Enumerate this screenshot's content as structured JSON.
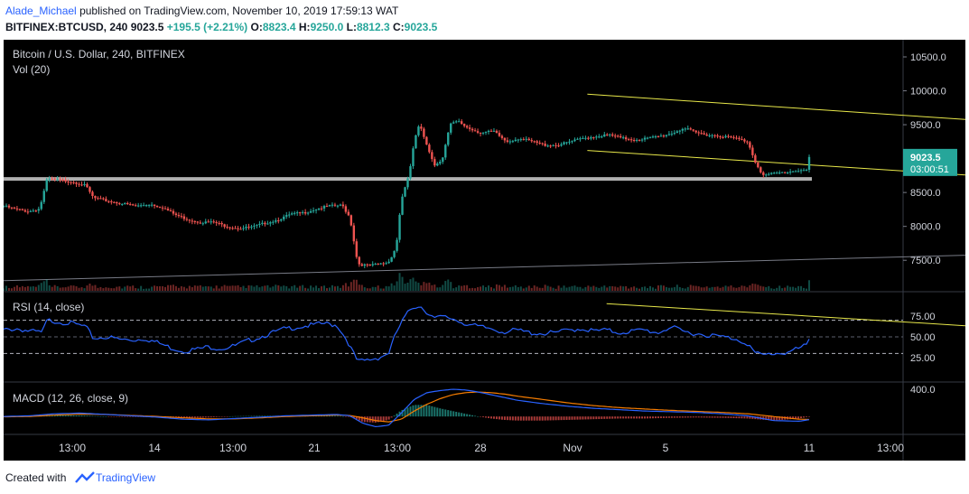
{
  "header": {
    "author": "Alade_Michael",
    "published_text": "published on TradingView.com, November 10, 2019 17:59:13 WAT",
    "symbol_line": "BITFINEX:BTCUSD, 240",
    "last": "9023.5",
    "change": "+195.5 (+2.21%)",
    "open_label": "O:",
    "open": "8823.4",
    "high_label": "H:",
    "high": "9250.0",
    "low_label": "L:",
    "low": "8812.3",
    "close_label": "C:",
    "close": "9023.5"
  },
  "footer": {
    "created_with": "Created with",
    "brand": "TradingView"
  },
  "colors": {
    "up": "#26a69a",
    "down": "#ef5350",
    "background": "#000000",
    "trendline": "#e8e84a",
    "rsi": "#2962ff",
    "macd": "#2962ff",
    "signal": "#f57c00",
    "support": "#b0b0b0"
  },
  "chart_data": {
    "type": "candlestick",
    "title": "Bitcoin / U.S. Dollar, 240, BITFINEX",
    "volume_label": "Vol (20)",
    "price_axis": {
      "ticks": [
        "10500.0",
        "10000.0",
        "9500.0",
        "9000.0",
        "8500.0",
        "8000.0",
        "7500.0"
      ],
      "range": [
        7050,
        10700
      ],
      "last_price": "9023.5",
      "countdown": "03:00:51"
    },
    "time_axis": {
      "labels": [
        "13:00",
        "14",
        "13:00",
        "21",
        "13:00",
        "28",
        "Nov",
        "5",
        "11",
        "13:00"
      ]
    },
    "close_path": [
      [
        0,
        8300
      ],
      [
        10,
        8250
      ],
      [
        20,
        8220
      ],
      [
        28,
        8260
      ],
      [
        34,
        8700
      ],
      [
        44,
        8680
      ],
      [
        54,
        8660
      ],
      [
        64,
        8600
      ],
      [
        70,
        8420
      ],
      [
        80,
        8380
      ],
      [
        94,
        8330
      ],
      [
        104,
        8300
      ],
      [
        114,
        8330
      ],
      [
        124,
        8280
      ],
      [
        134,
        8170
      ],
      [
        144,
        8100
      ],
      [
        154,
        8060
      ],
      [
        164,
        8060
      ],
      [
        174,
        8000
      ],
      [
        184,
        7970
      ],
      [
        194,
        7990
      ],
      [
        204,
        8050
      ],
      [
        214,
        8100
      ],
      [
        224,
        8180
      ],
      [
        234,
        8200
      ],
      [
        244,
        8260
      ],
      [
        254,
        8300
      ],
      [
        264,
        8310
      ],
      [
        270,
        8130
      ],
      [
        276,
        7450
      ],
      [
        284,
        7420
      ],
      [
        292,
        7440
      ],
      [
        300,
        7470
      ],
      [
        306,
        7700
      ],
      [
        310,
        8400
      ],
      [
        316,
        8750
      ],
      [
        320,
        9250
      ],
      [
        324,
        9500
      ],
      [
        330,
        9200
      ],
      [
        336,
        8900
      ],
      [
        342,
        9000
      ],
      [
        348,
        9500
      ],
      [
        354,
        9550
      ],
      [
        362,
        9450
      ],
      [
        372,
        9380
      ],
      [
        382,
        9400
      ],
      [
        392,
        9250
      ],
      [
        402,
        9300
      ],
      [
        412,
        9250
      ],
      [
        422,
        9200
      ],
      [
        432,
        9200
      ],
      [
        442,
        9250
      ],
      [
        452,
        9300
      ],
      [
        462,
        9330
      ],
      [
        472,
        9350
      ],
      [
        482,
        9300
      ],
      [
        492,
        9280
      ],
      [
        502,
        9300
      ],
      [
        512,
        9330
      ],
      [
        522,
        9380
      ],
      [
        530,
        9450
      ],
      [
        540,
        9380
      ],
      [
        550,
        9350
      ],
      [
        560,
        9330
      ],
      [
        570,
        9300
      ],
      [
        580,
        9250
      ],
      [
        586,
        8950
      ],
      [
        592,
        8750
      ],
      [
        600,
        8780
      ],
      [
        610,
        8800
      ],
      [
        620,
        8830
      ],
      [
        626,
        8830
      ],
      [
        630,
        9023.5
      ]
    ],
    "support_level": 8700,
    "channel_upper": [
      [
        455,
        9950
      ],
      [
        890,
        9400
      ]
    ],
    "channel_lower": [
      [
        455,
        9120
      ],
      [
        895,
        8580
      ]
    ],
    "long_trendline": [
      [
        0,
        7200
      ],
      [
        1000,
        7700
      ]
    ],
    "rsi": {
      "label": "RSI (14, close)",
      "ticks": [
        "75.00",
        "50.00",
        "25.00"
      ],
      "levels": [
        70,
        30
      ],
      "path": [
        [
          0,
          58
        ],
        [
          10,
          60
        ],
        [
          20,
          57
        ],
        [
          30,
          55
        ],
        [
          34,
          70
        ],
        [
          44,
          68
        ],
        [
          54,
          66
        ],
        [
          64,
          62
        ],
        [
          70,
          48
        ],
        [
          80,
          50
        ],
        [
          90,
          47
        ],
        [
          100,
          46
        ],
        [
          110,
          48
        ],
        [
          120,
          43
        ],
        [
          130,
          37
        ],
        [
          140,
          33
        ],
        [
          150,
          35
        ],
        [
          160,
          38
        ],
        [
          170,
          36
        ],
        [
          180,
          39
        ],
        [
          190,
          45
        ],
        [
          200,
          50
        ],
        [
          210,
          55
        ],
        [
          220,
          60
        ],
        [
          230,
          62
        ],
        [
          240,
          64
        ],
        [
          250,
          66
        ],
        [
          260,
          64
        ],
        [
          268,
          45
        ],
        [
          276,
          20
        ],
        [
          284,
          22
        ],
        [
          292,
          25
        ],
        [
          300,
          30
        ],
        [
          306,
          55
        ],
        [
          312,
          72
        ],
        [
          318,
          85
        ],
        [
          324,
          88
        ],
        [
          330,
          80
        ],
        [
          336,
          72
        ],
        [
          342,
          74
        ],
        [
          350,
          72
        ],
        [
          360,
          66
        ],
        [
          370,
          62
        ],
        [
          380,
          60
        ],
        [
          390,
          56
        ],
        [
          400,
          58
        ],
        [
          410,
          55
        ],
        [
          420,
          54
        ],
        [
          430,
          55
        ],
        [
          440,
          58
        ],
        [
          450,
          60
        ],
        [
          460,
          57
        ],
        [
          470,
          58
        ],
        [
          480,
          55
        ],
        [
          490,
          57
        ],
        [
          500,
          58
        ],
        [
          510,
          55
        ],
        [
          520,
          62
        ],
        [
          530,
          56
        ],
        [
          540,
          54
        ],
        [
          550,
          52
        ],
        [
          560,
          50
        ],
        [
          570,
          48
        ],
        [
          580,
          42
        ],
        [
          586,
          30
        ],
        [
          592,
          28
        ],
        [
          600,
          30
        ],
        [
          610,
          31
        ],
        [
          620,
          36
        ],
        [
          626,
          40
        ],
        [
          630,
          52
        ]
      ],
      "trendline": [
        [
          470,
          90
        ],
        [
          890,
          50
        ]
      ]
    },
    "macd": {
      "label": "MACD (12, 26, close, 9)",
      "ticks": [
        "400.0"
      ],
      "range": [
        -250,
        480
      ],
      "macd_path": [
        [
          0,
          0
        ],
        [
          20,
          10
        ],
        [
          40,
          40
        ],
        [
          60,
          50
        ],
        [
          80,
          30
        ],
        [
          100,
          10
        ],
        [
          120,
          -10
        ],
        [
          140,
          -40
        ],
        [
          160,
          -50
        ],
        [
          180,
          -30
        ],
        [
          200,
          -10
        ],
        [
          220,
          10
        ],
        [
          240,
          20
        ],
        [
          260,
          30
        ],
        [
          270,
          10
        ],
        [
          280,
          -100
        ],
        [
          290,
          -150
        ],
        [
          300,
          -130
        ],
        [
          310,
          50
        ],
        [
          320,
          250
        ],
        [
          330,
          350
        ],
        [
          340,
          380
        ],
        [
          350,
          400
        ],
        [
          360,
          390
        ],
        [
          370,
          360
        ],
        [
          380,
          320
        ],
        [
          390,
          280
        ],
        [
          400,
          240
        ],
        [
          420,
          190
        ],
        [
          440,
          150
        ],
        [
          460,
          120
        ],
        [
          480,
          100
        ],
        [
          500,
          80
        ],
        [
          520,
          70
        ],
        [
          540,
          60
        ],
        [
          560,
          40
        ],
        [
          580,
          10
        ],
        [
          600,
          -60
        ],
        [
          620,
          -70
        ],
        [
          630,
          -40
        ]
      ],
      "signal_path": [
        [
          0,
          -5
        ],
        [
          20,
          0
        ],
        [
          40,
          20
        ],
        [
          60,
          35
        ],
        [
          80,
          30
        ],
        [
          100,
          15
        ],
        [
          120,
          0
        ],
        [
          140,
          -20
        ],
        [
          160,
          -35
        ],
        [
          180,
          -35
        ],
        [
          200,
          -20
        ],
        [
          220,
          0
        ],
        [
          240,
          10
        ],
        [
          260,
          20
        ],
        [
          270,
          15
        ],
        [
          280,
          -20
        ],
        [
          290,
          -60
        ],
        [
          300,
          -80
        ],
        [
          310,
          -40
        ],
        [
          320,
          80
        ],
        [
          330,
          180
        ],
        [
          340,
          260
        ],
        [
          350,
          320
        ],
        [
          360,
          350
        ],
        [
          370,
          360
        ],
        [
          380,
          350
        ],
        [
          390,
          330
        ],
        [
          400,
          300
        ],
        [
          420,
          250
        ],
        [
          440,
          200
        ],
        [
          460,
          160
        ],
        [
          480,
          130
        ],
        [
          500,
          110
        ],
        [
          520,
          90
        ],
        [
          540,
          75
        ],
        [
          560,
          60
        ],
        [
          580,
          40
        ],
        [
          600,
          0
        ],
        [
          620,
          -40
        ],
        [
          630,
          -45
        ]
      ]
    }
  }
}
